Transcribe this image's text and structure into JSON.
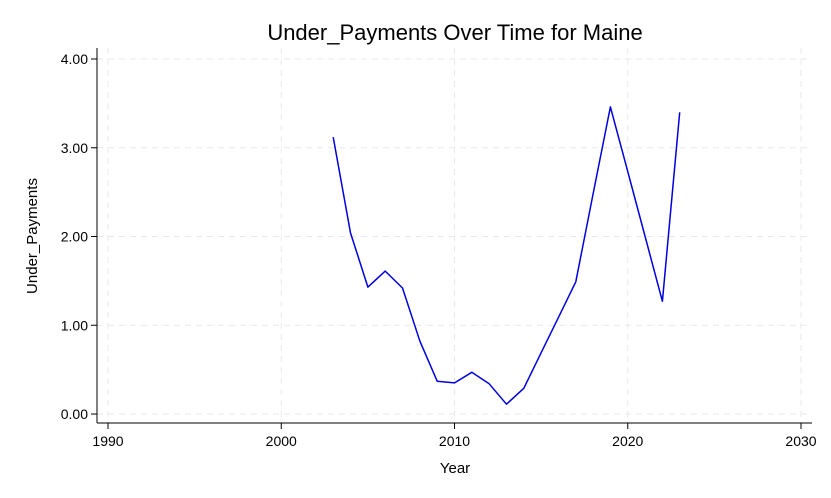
{
  "chart_data": {
    "type": "line",
    "title": "Under_Payments Over Time for Maine",
    "xlabel": "Year",
    "ylabel": "Under_Payments",
    "xlim": [
      1990,
      2030
    ],
    "ylim": [
      0,
      4
    ],
    "xticks": [
      1990,
      2000,
      2010,
      2020,
      2030
    ],
    "xtick_labels": [
      "1990",
      "2000",
      "2010",
      "2020",
      "2030"
    ],
    "yticks": [
      0,
      1,
      2,
      3,
      4
    ],
    "ytick_labels": [
      "0.00",
      "1.00",
      "2.00",
      "3.00",
      "4.00"
    ],
    "grid": true,
    "series": [
      {
        "color": "#0000dd",
        "x": [
          2003,
          2004,
          2005,
          2006,
          2007,
          2008,
          2009,
          2010,
          2011,
          2012,
          2013,
          2014,
          2015,
          2016,
          2017,
          2018,
          2019,
          2020,
          2021,
          2022,
          2023
        ],
        "y": [
          3.12,
          2.04,
          1.43,
          1.61,
          1.42,
          0.82,
          0.37,
          0.35,
          0.47,
          0.34,
          0.11,
          0.29,
          0.69,
          1.09,
          1.49,
          2.48,
          3.46,
          2.73,
          2.0,
          1.27,
          3.4
        ]
      }
    ]
  }
}
